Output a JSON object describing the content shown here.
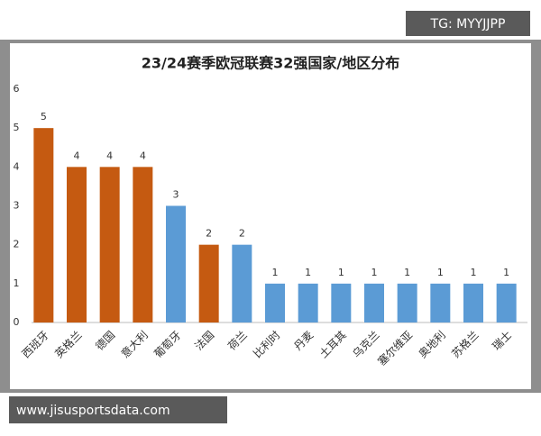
{
  "chart_data": {
    "type": "bar",
    "title": "23/24赛季欧冠联赛32强国家/地区分布",
    "categories": [
      "西班牙",
      "英格兰",
      "德国",
      "意大利",
      "葡萄牙",
      "法国",
      "荷兰",
      "比利时",
      "丹麦",
      "土耳其",
      "乌克兰",
      "塞尔维亚",
      "奥地利",
      "苏格兰",
      "瑞士"
    ],
    "values": [
      5,
      4,
      4,
      4,
      3,
      2,
      2,
      1,
      1,
      1,
      1,
      1,
      1,
      1,
      1
    ],
    "colors": [
      "#c55a11",
      "#c55a11",
      "#c55a11",
      "#c55a11",
      "#5b9bd5",
      "#c55a11",
      "#5b9bd5",
      "#5b9bd5",
      "#5b9bd5",
      "#5b9bd5",
      "#5b9bd5",
      "#5b9bd5",
      "#5b9bd5",
      "#5b9bd5",
      "#5b9bd5"
    ],
    "ylim": [
      0,
      6
    ],
    "yticks": [
      0,
      1,
      2,
      3,
      4,
      5,
      6
    ],
    "grid": false,
    "data_labels": true
  },
  "overlay": {
    "tag": "TG: MYYJJPP",
    "website": "www.jisusportsdata.com"
  }
}
